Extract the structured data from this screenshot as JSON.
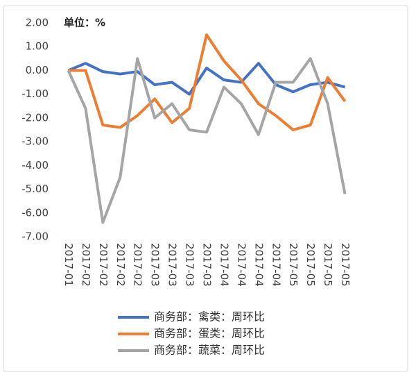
{
  "chart_data": {
    "type": "line",
    "annotation": "单位：%",
    "categories": [
      "2017-01",
      "2017-02",
      "2017-02",
      "2017-02",
      "2017-02",
      "2017-03",
      "2017-03",
      "2017-03",
      "2017-03",
      "2017-04",
      "2017-04",
      "2017-04",
      "2017-04",
      "2017-05",
      "2017-05",
      "2017-05",
      "2017-05"
    ],
    "series": [
      {
        "name": "商务部：禽类：周环比",
        "color": "#4472c4",
        "values": [
          0,
          0.3,
          -0.05,
          -0.15,
          -0.05,
          -0.6,
          -0.5,
          -1.0,
          0.1,
          -0.4,
          -0.5,
          0.3,
          -0.6,
          -0.9,
          -0.6,
          -0.5,
          -0.7
        ]
      },
      {
        "name": "商务部：蛋类：周环比",
        "color": "#ed7d31",
        "values": [
          0,
          0,
          -2.3,
          -2.4,
          -1.9,
          -1.2,
          -2.2,
          -1.6,
          1.5,
          0.4,
          -0.4,
          -1.4,
          -1.9,
          -2.5,
          -2.3,
          -0.3,
          -1.3
        ]
      },
      {
        "name": "商务部：蔬菜：周环比",
        "color": "#a5a5a5",
        "values": [
          0,
          -1.6,
          -6.4,
          -4.5,
          0.5,
          -2.0,
          -1.4,
          -2.5,
          -2.6,
          -0.7,
          -1.4,
          -2.7,
          -0.5,
          -0.5,
          0.5,
          -1.4,
          -5.2
        ]
      }
    ],
    "ylim": [
      -7,
      2
    ],
    "yticks": [
      {
        "value": 2,
        "label": "2.00"
      },
      {
        "value": 1,
        "label": "1.00"
      },
      {
        "value": 0,
        "label": "0.00"
      },
      {
        "value": -1,
        "label": "-1.00"
      },
      {
        "value": -2,
        "label": "-2.00"
      },
      {
        "value": -3,
        "label": "-3.00"
      },
      {
        "value": -4,
        "label": "-4.00"
      },
      {
        "value": -5,
        "label": "-5.00"
      },
      {
        "value": -6,
        "label": "-6.00"
      },
      {
        "value": -7,
        "label": "-7.00"
      }
    ],
    "grid": false,
    "legend": "bottom"
  }
}
